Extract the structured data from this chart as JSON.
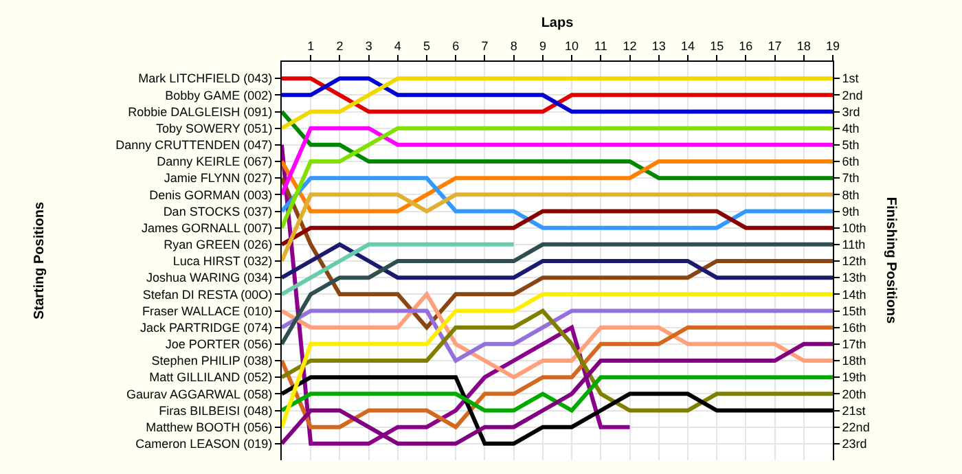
{
  "chart_data": {
    "type": "line",
    "xlabel": "Laps",
    "y2label": "Finishing Positions",
    "annotations": [
      "Starting Positions"
    ],
    "x": [
      0,
      1,
      2,
      3,
      4,
      5,
      6,
      7,
      8,
      9,
      10,
      11,
      12,
      13,
      14,
      15,
      16,
      17,
      18,
      19
    ],
    "xlim": [
      0,
      19
    ],
    "xticks": [
      1,
      2,
      3,
      4,
      5,
      6,
      7,
      8,
      9,
      10,
      11,
      12,
      13,
      14,
      15,
      16,
      17,
      18,
      19
    ],
    "y_categories": [
      "Mark LITCHFIELD (043)",
      "Bobby GAME (002)",
      "Robbie DALGLEISH (091)",
      "Toby SOWERY (051)",
      "Danny CRUTTENDEN (047)",
      "Danny KEIRLE (067)",
      "Jamie FLYNN (027)",
      "Denis GORMAN (003)",
      "Dan STOCKS (037)",
      "James GORNALL (007)",
      "Ryan GREEN (026)",
      "Luca HIRST (032)",
      "Joshua WARING (034)",
      "Stefan DI RESTA (00O)",
      "Fraser WALLACE (010)",
      "Jack PARTRIDGE (074)",
      "Joe PORTER (056)",
      "Stephen PHILIP (038)",
      "Matt GILLILAND (052)",
      "Gaurav AGGARWAL (058)",
      "Firas BILBEISI (048)",
      "Matthew BOOTH (056)",
      "Cameron LEASON (019)"
    ],
    "y2lim": [
      24,
      0
    ],
    "y2ticks": [
      {
        "value": 1,
        "label": "1st"
      },
      {
        "value": 2,
        "label": "2nd"
      },
      {
        "value": 3,
        "label": "3rd"
      },
      {
        "value": 4,
        "label": "4th"
      },
      {
        "value": 5,
        "label": "5th"
      },
      {
        "value": 6,
        "label": "6th"
      },
      {
        "value": 7,
        "label": "7th"
      },
      {
        "value": 8,
        "label": "8th"
      },
      {
        "value": 9,
        "label": "9th"
      },
      {
        "value": 10,
        "label": "10th"
      },
      {
        "value": 11,
        "label": "11th"
      },
      {
        "value": 12,
        "label": "12th"
      },
      {
        "value": 13,
        "label": "13th"
      },
      {
        "value": 14,
        "label": "14th"
      },
      {
        "value": 15,
        "label": "15th"
      },
      {
        "value": 16,
        "label": "16th"
      },
      {
        "value": 17,
        "label": "17th"
      },
      {
        "value": 18,
        "label": "18th"
      },
      {
        "value": 19,
        "label": "19th"
      },
      {
        "value": 20,
        "label": "20th"
      },
      {
        "value": 21,
        "label": "21st"
      },
      {
        "value": 22,
        "label": "22nd"
      },
      {
        "value": 23,
        "label": "23rd"
      }
    ],
    "grid": true,
    "series": [
      {
        "axis": "y2",
        "color": "#e00000",
        "values": [
          1,
          1,
          2,
          3,
          3,
          3,
          3,
          3,
          3,
          3,
          2,
          2,
          2,
          2,
          2,
          2,
          2,
          2,
          2,
          2
        ]
      },
      {
        "axis": "y2",
        "color": "#0000d0",
        "values": [
          2,
          2,
          1,
          1,
          2,
          2,
          2,
          2,
          2,
          2,
          3,
          3,
          3,
          3,
          3,
          3,
          3,
          3,
          3,
          3
        ]
      },
      {
        "axis": "y2",
        "color": "#008800",
        "values": [
          3,
          5,
          5,
          6,
          6,
          6,
          6,
          6,
          6,
          6,
          6,
          6,
          6,
          7,
          7,
          7,
          7,
          7,
          7,
          7
        ]
      },
      {
        "axis": "y2",
        "color": "#f0d800",
        "values": [
          4,
          3,
          3,
          2,
          1,
          1,
          1,
          1,
          1,
          1,
          1,
          1,
          1,
          1,
          1,
          1,
          1,
          1,
          1,
          1
        ]
      },
      {
        "axis": "y2",
        "color": "#8b008b",
        "values": [
          5,
          23,
          23,
          23,
          22,
          22,
          21,
          19,
          18,
          17,
          16,
          22,
          22,
          null,
          null,
          null,
          null,
          null,
          null,
          null
        ]
      },
      {
        "axis": "y2",
        "color": "#ff8000",
        "values": [
          6,
          9,
          9,
          9,
          9,
          8,
          7,
          7,
          7,
          7,
          7,
          7,
          7,
          6,
          6,
          6,
          6,
          6,
          6,
          6
        ]
      },
      {
        "axis": "y2",
        "color": "#8b4513",
        "values": [
          7,
          11,
          14,
          14,
          14,
          16,
          14,
          14,
          14,
          13,
          13,
          13,
          13,
          13,
          13,
          12,
          12,
          12,
          12,
          12
        ]
      },
      {
        "axis": "y2",
        "color": "#ff00ff",
        "values": [
          8,
          4,
          4,
          4,
          5,
          5,
          5,
          5,
          5,
          5,
          5,
          5,
          5,
          5,
          5,
          5,
          5,
          5,
          5,
          5
        ]
      },
      {
        "axis": "y2",
        "color": "#3399ff",
        "values": [
          9,
          7,
          7,
          7,
          7,
          7,
          9,
          9,
          9,
          10,
          10,
          10,
          10,
          10,
          10,
          10,
          9,
          9,
          9,
          9
        ]
      },
      {
        "axis": "y2",
        "color": "#80e000",
        "values": [
          10,
          6,
          6,
          5,
          4,
          4,
          4,
          4,
          4,
          4,
          4,
          4,
          4,
          4,
          4,
          4,
          4,
          4,
          4,
          4
        ]
      },
      {
        "axis": "y2",
        "color": "#8b0000",
        "values": [
          11,
          10,
          10,
          10,
          10,
          10,
          10,
          10,
          10,
          9,
          9,
          9,
          9,
          9,
          9,
          9,
          10,
          10,
          10,
          10
        ]
      },
      {
        "axis": "y2",
        "color": "#e0b030",
        "values": [
          12,
          8,
          8,
          8,
          8,
          9,
          8,
          8,
          8,
          8,
          8,
          8,
          8,
          8,
          8,
          8,
          8,
          8,
          8,
          8
        ]
      },
      {
        "axis": "y2",
        "color": "#1a1a6e",
        "values": [
          13,
          12,
          11,
          12,
          13,
          13,
          13,
          13,
          13,
          12,
          12,
          12,
          12,
          12,
          12,
          13,
          13,
          13,
          13,
          13
        ]
      },
      {
        "axis": "y2",
        "color": "#66ccaa",
        "values": [
          14,
          13,
          12,
          11,
          11,
          11,
          11,
          11,
          11,
          null,
          null,
          null,
          null,
          null,
          null,
          null,
          null,
          null,
          null,
          null
        ]
      },
      {
        "axis": "y2",
        "color": "#ffa07a",
        "values": [
          15,
          16,
          16,
          16,
          16,
          14,
          17,
          18,
          19,
          18,
          18,
          16,
          16,
          16,
          17,
          17,
          17,
          17,
          18,
          18
        ]
      },
      {
        "axis": "y2",
        "color": "#9370db",
        "values": [
          16,
          15,
          15,
          15,
          15,
          15,
          18,
          17,
          17,
          16,
          15,
          15,
          15,
          15,
          15,
          15,
          15,
          15,
          15,
          15
        ]
      },
      {
        "axis": "y2",
        "color": "#2f4f4f",
        "values": [
          17,
          14,
          13,
          13,
          12,
          12,
          12,
          12,
          12,
          11,
          11,
          11,
          11,
          11,
          11,
          11,
          11,
          11,
          11,
          11
        ]
      },
      {
        "axis": "y2",
        "color": "#d2691e",
        "values": [
          18,
          22,
          22,
          21,
          21,
          21,
          22,
          20,
          20,
          19,
          19,
          17,
          17,
          17,
          16,
          16,
          16,
          16,
          16,
          16
        ]
      },
      {
        "axis": "y2",
        "color": "#808000",
        "values": [
          19,
          18,
          18,
          18,
          18,
          18,
          16,
          16,
          16,
          15,
          17,
          20,
          21,
          21,
          21,
          20,
          20,
          20,
          20,
          20
        ]
      },
      {
        "axis": "y2",
        "color": "#000000",
        "values": [
          20,
          19,
          19,
          19,
          19,
          19,
          19,
          23,
          23,
          22,
          22,
          21,
          20,
          20,
          20,
          21,
          21,
          21,
          21,
          21
        ]
      },
      {
        "axis": "y2",
        "color": "#00aa00",
        "values": [
          21,
          20,
          20,
          20,
          20,
          20,
          20,
          21,
          21,
          20,
          21,
          19,
          19,
          19,
          19,
          19,
          19,
          19,
          19,
          19
        ]
      },
      {
        "axis": "y2",
        "color": "#ffee00",
        "values": [
          22,
          17,
          17,
          17,
          17,
          17,
          15,
          15,
          15,
          14,
          14,
          14,
          14,
          14,
          14,
          14,
          14,
          14,
          14,
          14
        ]
      },
      {
        "axis": "y2",
        "color": "#800080",
        "values": [
          23,
          21,
          21,
          22,
          23,
          23,
          23,
          22,
          22,
          21,
          20,
          18,
          18,
          18,
          18,
          18,
          18,
          18,
          17,
          17
        ]
      }
    ]
  }
}
